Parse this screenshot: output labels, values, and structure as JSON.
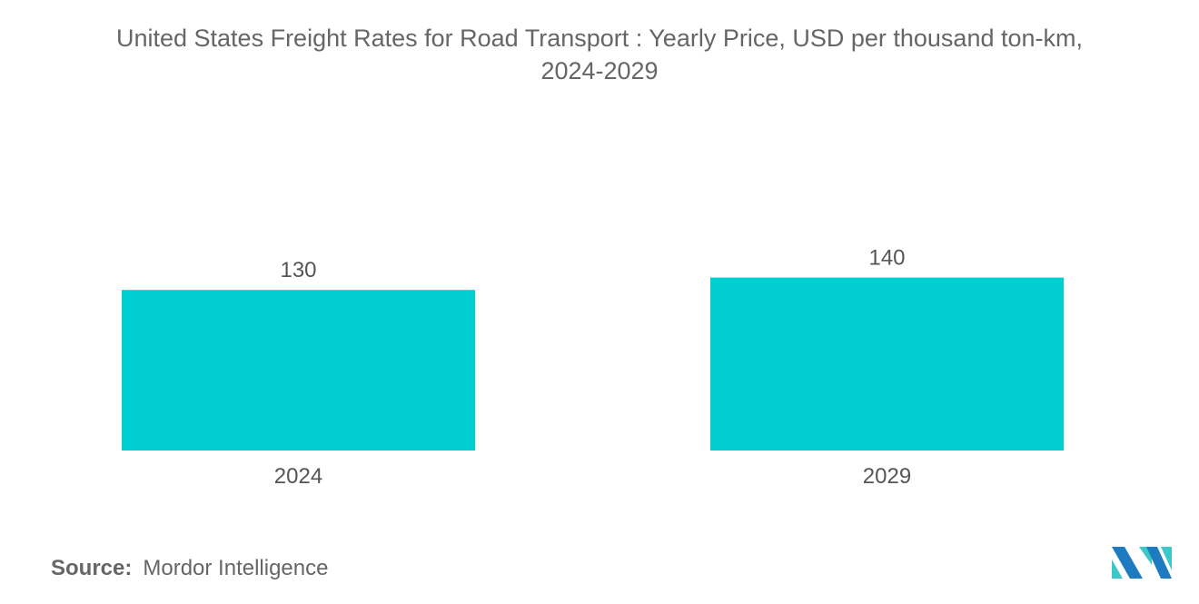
{
  "chart_data": {
    "type": "bar",
    "title": "United States Freight Rates for Road Transport : Yearly Price, USD per thousand ton-km, 2024-2029",
    "title_lines": [
      "United States Freight Rates for Road Transport : Yearly Price, USD per thousand ton-km,",
      "2024-2029"
    ],
    "categories": [
      "2024",
      "2029"
    ],
    "values": [
      130,
      140
    ],
    "xlabel": "",
    "ylabel": "",
    "grid": false,
    "bar_color": "#00CED1"
  },
  "source": {
    "label": "Source:",
    "value": "Mordor Intelligence"
  },
  "logo": {
    "colors": [
      "#1F7BBF",
      "#3CC8C8"
    ]
  }
}
